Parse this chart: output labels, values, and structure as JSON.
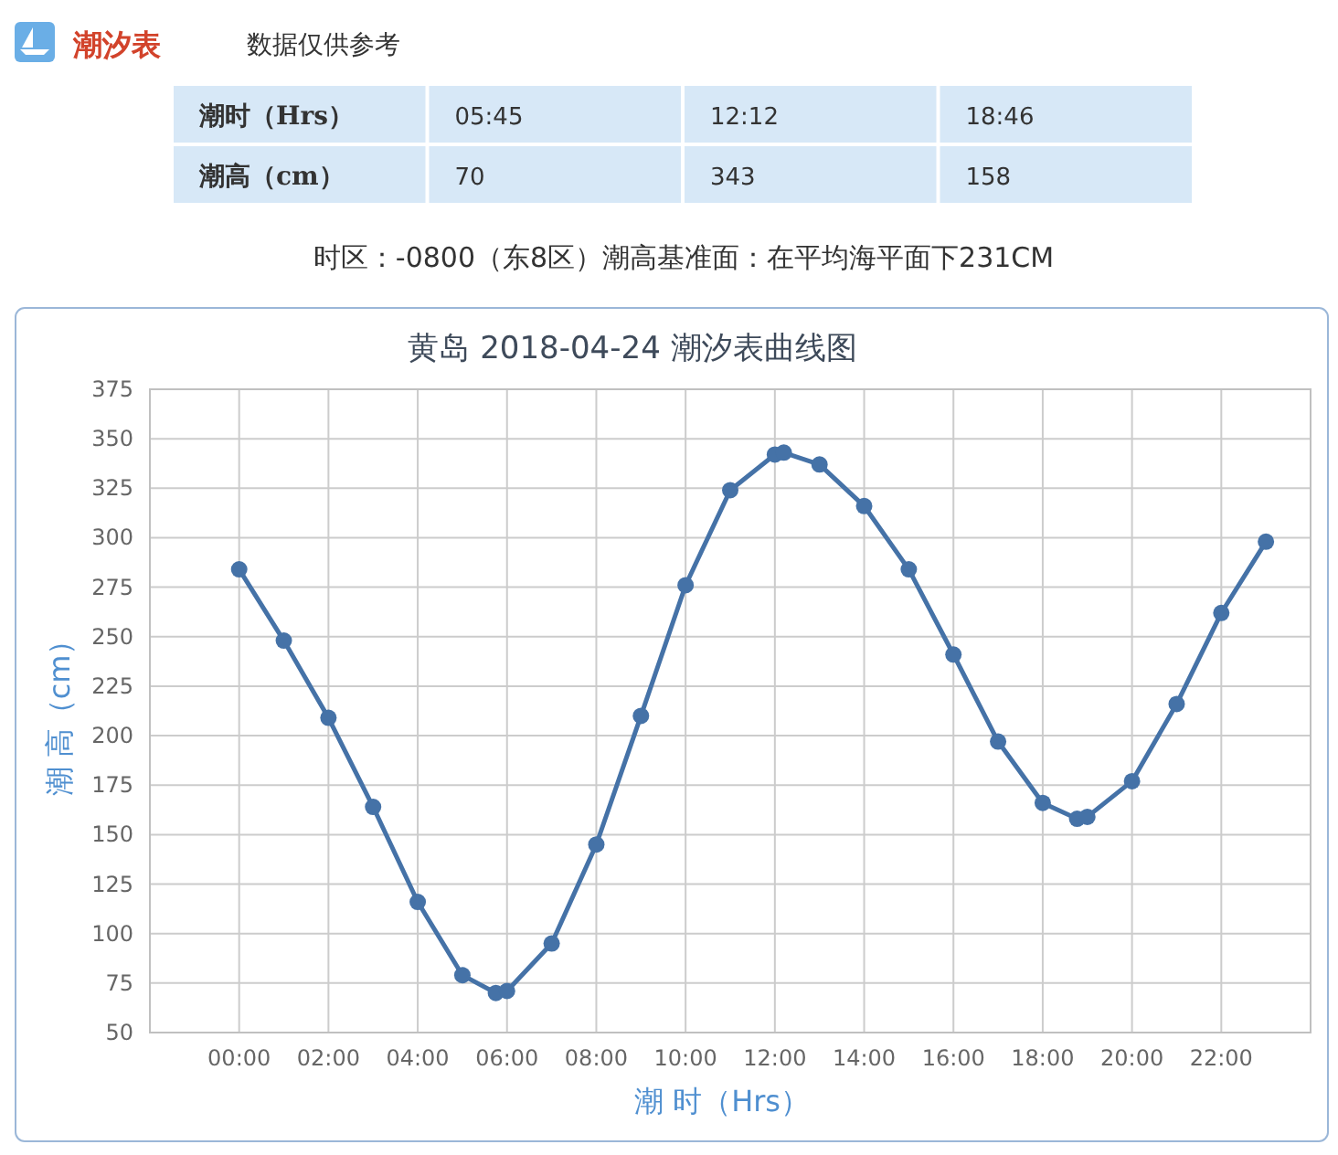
{
  "chart_data": [
    {
      "type": "other",
      "title": "潮汐表",
      "subtitle": "数据仅供参考",
      "annotations": [
        "潮时（Hrs）",
        "05:45",
        "12:12",
        "18:46",
        "潮高（cm）",
        "70",
        "343",
        "158",
        "时区：-0800（东8区）潮高基准面：在平均海平面下231CM"
      ]
    },
    {
      "type": "line",
      "title": "黄岛 2018-04-24 潮汐表曲线图",
      "xlabel": "潮 时（Hrs）",
      "ylabel": "潮 高（cm）",
      "x": [
        0,
        1,
        2,
        3,
        4,
        5,
        5.75,
        6,
        7,
        8,
        9,
        10,
        11,
        12,
        12.2,
        13,
        14,
        15,
        16,
        17,
        18,
        18.77,
        19,
        20,
        21,
        22,
        23
      ],
      "values": [
        284,
        248,
        209,
        164,
        116,
        79,
        70,
        71,
        95,
        145,
        210,
        276,
        324,
        342,
        343,
        337,
        316,
        284,
        241,
        197,
        166,
        158,
        159,
        177,
        216,
        262,
        298
      ],
      "color": "#4572a7",
      "xlim": [
        -2,
        24
      ],
      "ylim": [
        50,
        375
      ],
      "xticks": [
        {
          "value": 0,
          "label": "00:00"
        },
        {
          "value": 2,
          "label": "02:00"
        },
        {
          "value": 4,
          "label": "04:00"
        },
        {
          "value": 6,
          "label": "06:00"
        },
        {
          "value": 8,
          "label": "08:00"
        },
        {
          "value": 10,
          "label": "10:00"
        },
        {
          "value": 12,
          "label": "12:00"
        },
        {
          "value": 14,
          "label": "14:00"
        },
        {
          "value": 16,
          "label": "16:00"
        },
        {
          "value": 18,
          "label": "18:00"
        },
        {
          "value": 20,
          "label": "20:00"
        },
        {
          "value": 22,
          "label": "22:00"
        }
      ],
      "yticks": [
        50,
        75,
        100,
        125,
        150,
        175,
        200,
        225,
        250,
        275,
        300,
        325,
        350,
        375
      ],
      "grid": true,
      "marker": "circle",
      "line_style": "solid"
    }
  ]
}
